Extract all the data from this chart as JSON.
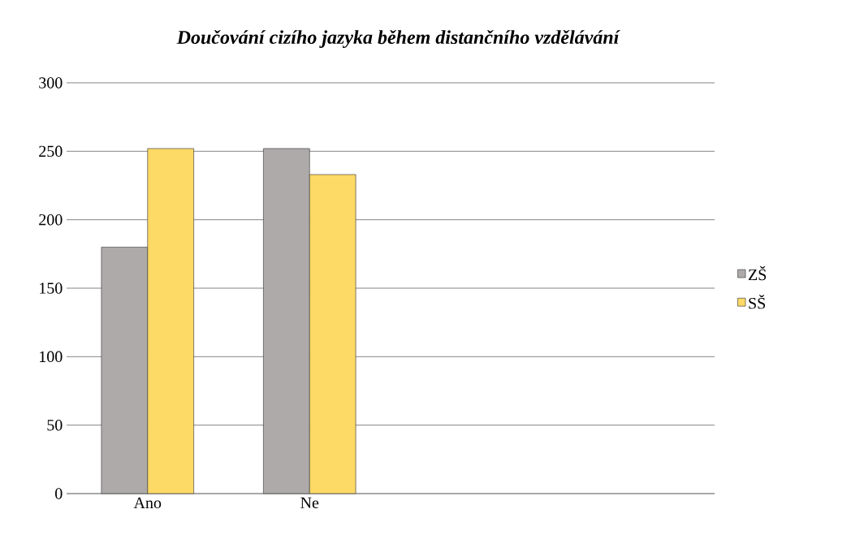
{
  "chart_data": {
    "type": "bar",
    "title": "Doučování cizího jazyka během distančního vzdělávání",
    "categories": [
      "Ano",
      "Ne",
      null,
      null
    ],
    "series": [
      {
        "name": "ZŠ",
        "color": "#aeaaaa",
        "values": [
          180,
          252,
          null,
          null
        ]
      },
      {
        "name": "SŠ",
        "color": "#fdd966",
        "values": [
          252,
          233,
          null,
          null
        ]
      }
    ],
    "ylim": [
      0,
      300
    ],
    "yticks": [
      0,
      50,
      100,
      150,
      200,
      250,
      300
    ],
    "grid": "y",
    "legend": "right"
  }
}
